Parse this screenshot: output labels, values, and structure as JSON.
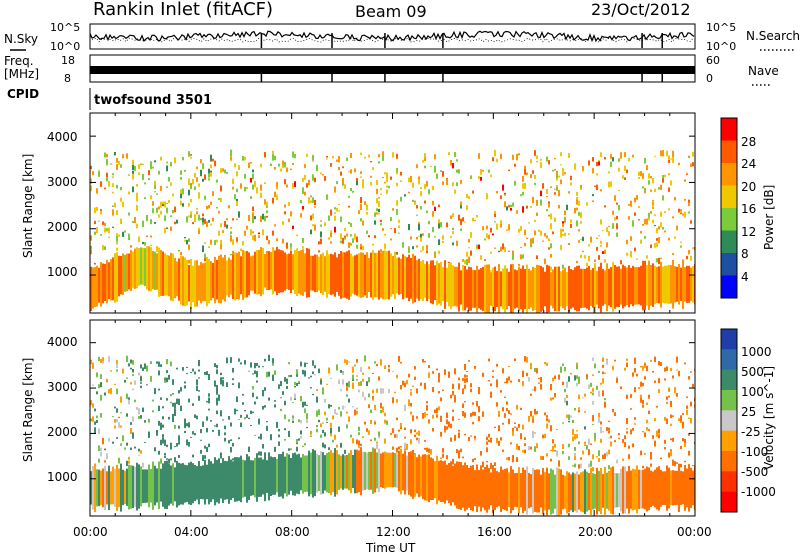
{
  "header": {
    "title": "Rankin Inlet (fitACF)",
    "beam": "Beam 09",
    "date": "23/Oct/2012"
  },
  "noise_panel": {
    "left_label": "N.Sky",
    "right_label": "N.Search",
    "left_ticks": [
      "10^5",
      "10^0"
    ],
    "right_ticks": [
      "10^5",
      "10^0"
    ]
  },
  "freq_panel": {
    "left_label_1": "Freq.",
    "left_label_2": "[MHz]",
    "left_ticks": [
      "18",
      "8"
    ],
    "right_label": "Nave",
    "right_ticks": [
      "60",
      "0"
    ]
  },
  "cpid_panel": {
    "label": "CPID",
    "value": "twofsound 3501"
  },
  "axes": {
    "ylabel": "Slant Range [km]",
    "yticks": [
      "1000",
      "2000",
      "3000",
      "4000"
    ],
    "xticks": [
      "00:00",
      "04:00",
      "08:00",
      "12:00",
      "16:00",
      "20:00",
      "00:00"
    ],
    "xlabel": "Time UT"
  },
  "colorbars": {
    "power": {
      "label": "Power [dB]",
      "ticks": [
        "28",
        "24",
        "20",
        "16",
        "12",
        "8",
        "4"
      ],
      "colors": [
        "#ff0000",
        "#ff5a00",
        "#ff9600",
        "#f0c800",
        "#7acc3a",
        "#2e8b57",
        "#1e4fa0",
        "#0000ff"
      ]
    },
    "velocity": {
      "label": "Velocity [m s^-1]",
      "ticks": [
        "1000",
        "500",
        "100",
        "25",
        "-25",
        "-100",
        "-500",
        "-1000"
      ],
      "colors": [
        "#1f3ea8",
        "#2f6aa8",
        "#3d8a6a",
        "#74c24a",
        "#c8c8c8",
        "#ffa000",
        "#ff7000",
        "#ff3000",
        "#ff0000"
      ]
    }
  },
  "chart_data": [
    {
      "type": "heatmap",
      "title": "Power",
      "xlabel": "Time UT",
      "ylabel": "Slant Range [km]",
      "x_range_hours": [
        0,
        24
      ],
      "y_range_km": [
        180,
        4500
      ],
      "colorbar_label": "Power [dB]",
      "colorbar_range_db": [
        0,
        32
      ],
      "profile": [
        {
          "hour": 0,
          "range_km": 800,
          "power_db": 28
        },
        {
          "hour": 2,
          "range_km": 1300,
          "power_db": 24
        },
        {
          "hour": 4,
          "range_km": 900,
          "power_db": 26
        },
        {
          "hour": 7,
          "range_km": 1200,
          "power_db": 28
        },
        {
          "hour": 10,
          "range_km": 1100,
          "power_db": 28
        },
        {
          "hour": 12,
          "range_km": 1100,
          "power_db": 26
        },
        {
          "hour": 15,
          "range_km": 800,
          "power_db": 28
        },
        {
          "hour": 19,
          "range_km": 800,
          "power_db": 28
        },
        {
          "hour": 23,
          "range_km": 900,
          "power_db": 28
        }
      ]
    },
    {
      "type": "heatmap",
      "title": "Velocity",
      "xlabel": "Time UT",
      "ylabel": "Slant Range [km]",
      "x_range_hours": [
        0,
        24
      ],
      "y_range_km": [
        180,
        4500
      ],
      "colorbar_label": "Velocity [m s^-1]",
      "colorbar_levels": [
        1000,
        500,
        100,
        25,
        -25,
        -100,
        -500,
        -1000
      ],
      "profile": [
        {
          "hour": 1,
          "range_km": 900,
          "velocity": 25
        },
        {
          "hour": 4,
          "range_km": 1000,
          "velocity": 300
        },
        {
          "hour": 8,
          "range_km": 1200,
          "velocity": 150
        },
        {
          "hour": 12,
          "range_km": 1300,
          "velocity": -100
        },
        {
          "hour": 15,
          "range_km": 900,
          "velocity": -300
        },
        {
          "hour": 19,
          "range_km": 800,
          "velocity": 0
        },
        {
          "hour": 23,
          "range_km": 900,
          "velocity": -200
        }
      ]
    }
  ]
}
